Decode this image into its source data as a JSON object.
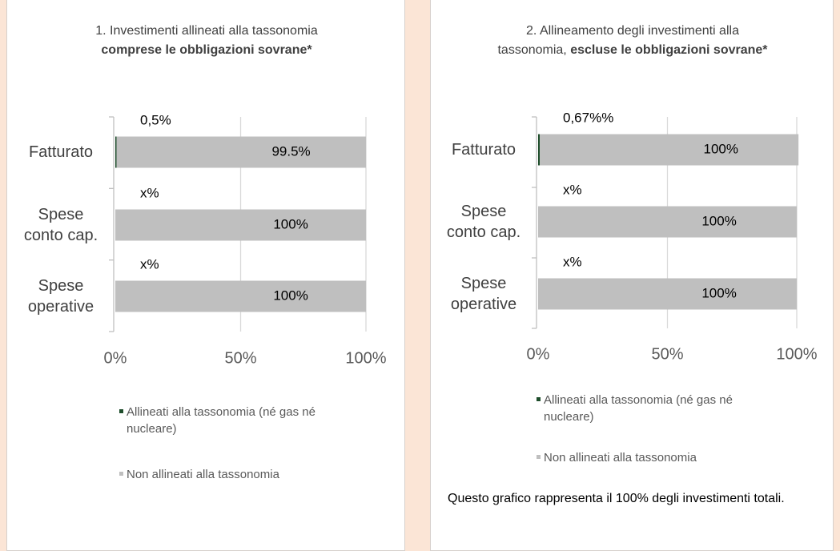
{
  "chart_data": [
    {
      "type": "bar",
      "orientation": "horizontal",
      "stacked": true,
      "title": "1. Investimenti allineati alla tassonomia",
      "title_bold": "comprese le obbligazioni sovrane*",
      "categories": [
        "Fatturato",
        "Spese conto cap.",
        "Spese operative"
      ],
      "series": [
        {
          "name": "Allineati alla tassonomia (né gas né nucleare)",
          "color": "#1e4d2b",
          "values": [
            0.5,
            null,
            null
          ],
          "value_labels": [
            "0,5%",
            "x%",
            "x%"
          ]
        },
        {
          "name": "Non allineati alla tassonomia",
          "color": "#bfbfbf",
          "values": [
            99.5,
            100,
            100
          ],
          "value_labels": [
            "99.5%",
            "100%",
            "100%"
          ]
        }
      ],
      "xlim": [
        0,
        100
      ],
      "xticks": [
        {
          "value": 0,
          "label": "0%"
        },
        {
          "value": 50,
          "label": "50%"
        },
        {
          "value": 100,
          "label": "100%"
        }
      ],
      "grid": true
    },
    {
      "type": "bar",
      "orientation": "horizontal",
      "stacked": true,
      "title": "2. Allineamento degli investimenti alla tassonomia,",
      "title_bold": "escluse le obbligazioni sovrane*",
      "categories": [
        "Fatturato",
        "Spese conto cap.",
        "Spese operative"
      ],
      "series": [
        {
          "name": "Allineati alla tassonomia (né gas né nucleare)",
          "color": "#1e4d2b",
          "values": [
            0.67,
            null,
            null
          ],
          "value_labels": [
            "0,67%%",
            "x%",
            "x%"
          ]
        },
        {
          "name": "Non allineati alla tassonomia",
          "color": "#bfbfbf",
          "values": [
            100,
            100,
            100
          ],
          "value_labels": [
            "100%",
            "100%",
            "100%"
          ]
        }
      ],
      "xlim": [
        0,
        100
      ],
      "xticks": [
        {
          "value": 0,
          "label": "0%"
        },
        {
          "value": 50,
          "label": "50%"
        },
        {
          "value": 100,
          "label": "100%"
        }
      ],
      "grid": true,
      "note": "Questo grafico rappresenta il 100% degli investimenti totali."
    }
  ]
}
